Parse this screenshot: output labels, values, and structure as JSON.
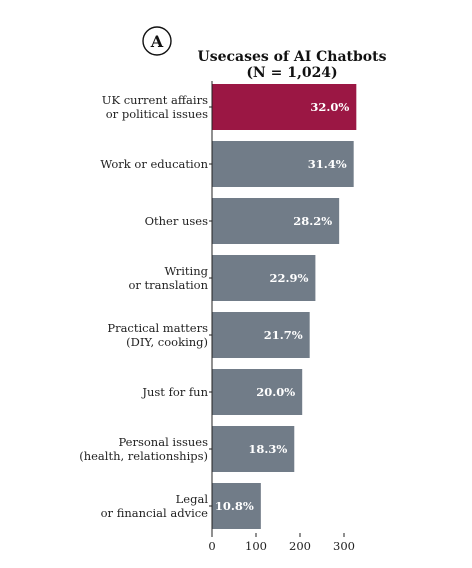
{
  "panel_label": "A",
  "chart_data": {
    "type": "bar",
    "orientation": "horizontal",
    "title_lines": [
      "Usecases of AI Chatbots",
      "(N = 1,024)"
    ],
    "categories": [
      [
        "UK current affairs",
        "or political issues"
      ],
      [
        "Work or education"
      ],
      [
        "Other uses"
      ],
      [
        "Writing",
        "or translation"
      ],
      [
        "Practical matters",
        "(DIY, cooking)"
      ],
      [
        "Just for fun"
      ],
      [
        "Personal issues",
        "(health, relationships)"
      ],
      [
        "Legal",
        "or financial advice"
      ]
    ],
    "values": [
      328,
      322,
      289,
      235,
      222,
      205,
      187,
      111
    ],
    "value_labels": [
      "32.0%",
      "31.4%",
      "28.2%",
      "22.9%",
      "21.7%",
      "20.0%",
      "18.3%",
      "10.8%"
    ],
    "highlight_index": 0,
    "xlim": [
      0,
      330
    ],
    "xticks": [
      0,
      100,
      200,
      300
    ],
    "xtick_labels": [
      "0",
      "100",
      "200",
      "300"
    ],
    "xlabel": "",
    "ylabel": "",
    "grid": false,
    "legend": "none",
    "colors": {
      "highlight": "#9b1744",
      "default": "#717c88",
      "axis": "#222222",
      "value_text": "#ffffff"
    }
  }
}
